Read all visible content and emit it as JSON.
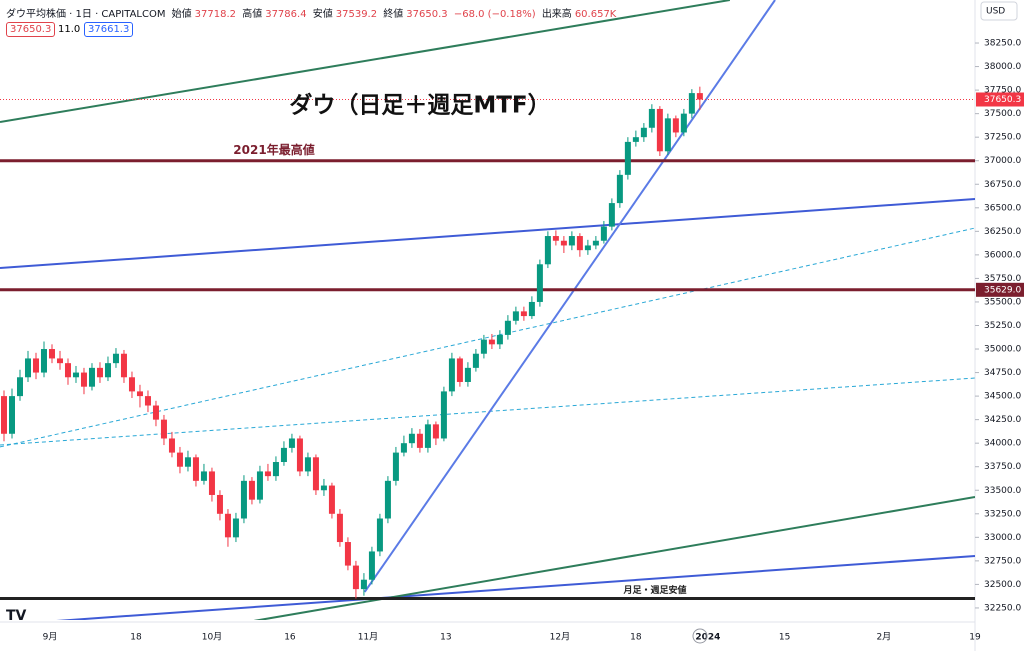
{
  "header": {
    "symbol": "ダウ平均株価 · 1日 · CAPITALCOM",
    "open_label": "始値",
    "open": "37718.2",
    "high_label": "高値",
    "high": "37786.4",
    "low_label": "安値",
    "low": "37539.2",
    "close_label": "終値",
    "close": "37650.3",
    "change": "−68.0 (−0.18%)",
    "volume_label": "出来高",
    "volume": "60.657K",
    "sell": "37650.3",
    "spread": "11.0",
    "buy": "37661.3",
    "currency": "USD"
  },
  "chart_data": {
    "type": "candlestick",
    "title": "ダウ（日足＋週足MTF）",
    "up_color": "#089981",
    "down_color": "#f23645",
    "xlim": [
      -0.5,
      121.4
    ],
    "xticks": [
      {
        "value": 5.75,
        "label": "9月"
      },
      {
        "value": 16.5,
        "label": "18"
      },
      {
        "value": 26,
        "label": "10月"
      },
      {
        "value": 35.75,
        "label": "16"
      },
      {
        "value": 45.5,
        "label": "11月"
      },
      {
        "value": 55.25,
        "label": "13"
      },
      {
        "value": 69.5,
        "label": "12月"
      },
      {
        "value": 79,
        "label": "18"
      },
      {
        "value": 88,
        "label": "2024"
      },
      {
        "value": 97.6,
        "label": "15"
      },
      {
        "value": 110,
        "label": "2月"
      },
      {
        "value": 121.4,
        "label": "19"
      }
    ],
    "ylim": [
      32122,
      38707
    ],
    "yticks": [
      {
        "value": 32250,
        "label": "32250.0"
      },
      {
        "value": 32500,
        "label": "32500.0"
      },
      {
        "value": 32750,
        "label": "32750.0"
      },
      {
        "value": 33000,
        "label": "33000.0"
      },
      {
        "value": 33250,
        "label": "33250.0"
      },
      {
        "value": 33500,
        "label": "33500.0"
      },
      {
        "value": 33750,
        "label": "33750.0"
      },
      {
        "value": 34000,
        "label": "34000.0"
      },
      {
        "value": 34250,
        "label": "34250.0"
      },
      {
        "value": 34500,
        "label": "34500.0"
      },
      {
        "value": 34750,
        "label": "34750.0"
      },
      {
        "value": 35000,
        "label": "35000.0"
      },
      {
        "value": 35250,
        "label": "35250.0"
      },
      {
        "value": 35500,
        "label": "35500.0"
      },
      {
        "value": 35750,
        "label": "35750.0"
      },
      {
        "value": 36000,
        "label": "36000.0"
      },
      {
        "value": 36250,
        "label": "36250.0"
      },
      {
        "value": 36500,
        "label": "36500.0"
      },
      {
        "value": 36750,
        "label": "36750.0"
      },
      {
        "value": 37000,
        "label": "37000.0"
      },
      {
        "value": 37250,
        "label": "37250.0"
      },
      {
        "value": 37500,
        "label": "37500.0"
      },
      {
        "value": 37750,
        "label": "37750.0"
      },
      {
        "value": 38000,
        "label": "38000.0"
      },
      {
        "value": 38250,
        "label": "38250.0"
      }
    ],
    "open": [
      34500,
      34100,
      34500,
      34700,
      34900,
      34750,
      35000,
      34900,
      34850,
      34700,
      34750,
      34600,
      34800,
      34700,
      34850,
      34950,
      34700,
      34550,
      34500,
      34400,
      34250,
      34050,
      33900,
      33750,
      33850,
      33600,
      33700,
      33450,
      33250,
      33000,
      33200,
      33600,
      33400,
      33700,
      33650,
      33800,
      33950,
      34050,
      33700,
      33850,
      33500,
      33550,
      33250,
      32950,
      32700,
      32450,
      32550,
      32850,
      33200,
      33600,
      33900,
      34000,
      34100,
      33950,
      34200,
      34050,
      34550,
      34900,
      34650,
      34800,
      34950,
      35100,
      35050,
      35150,
      35300,
      35400,
      35350,
      35500,
      35900,
      36200,
      36150,
      36100,
      36200,
      36050,
      36100,
      36150,
      36300,
      36550,
      36850,
      37200,
      37250,
      37350,
      37550,
      37100,
      37450,
      37300,
      37500,
      37718.2
    ],
    "high": [
      34560,
      34580,
      34780,
      34980,
      34960,
      35080,
      35050,
      34980,
      34900,
      34820,
      34800,
      34850,
      34860,
      34920,
      35010,
      34990,
      34760,
      34620,
      34560,
      34450,
      34300,
      34120,
      33960,
      33920,
      33880,
      33780,
      33740,
      33500,
      33300,
      33260,
      33660,
      33640,
      33760,
      33780,
      33860,
      34020,
      34100,
      34080,
      33900,
      33880,
      33620,
      33580,
      33300,
      33000,
      32750,
      32620,
      32900,
      33250,
      33650,
      33960,
      34080,
      34160,
      34150,
      34250,
      34230,
      34600,
      34960,
      34920,
      34860,
      35000,
      35150,
      35160,
      35200,
      35360,
      35450,
      35450,
      35560,
      35950,
      36250,
      36260,
      36200,
      36250,
      36230,
      36160,
      36200,
      36360,
      36600,
      36900,
      37250,
      37320,
      37400,
      37600,
      37580,
      37500,
      37480,
      37550,
      37760,
      37786.4
    ],
    "low": [
      34020,
      34050,
      34450,
      34650,
      34680,
      34700,
      34850,
      34780,
      34620,
      34640,
      34520,
      34560,
      34640,
      34660,
      34800,
      34640,
      34480,
      34380,
      34330,
      34180,
      33980,
      33850,
      33680,
      33700,
      33540,
      33560,
      33380,
      33180,
      32900,
      32950,
      33150,
      33350,
      33360,
      33600,
      33600,
      33760,
      33900,
      33650,
      33650,
      33450,
      33440,
      33200,
      32900,
      32650,
      32350,
      32380,
      32500,
      32800,
      33150,
      33550,
      33860,
      33950,
      33900,
      33900,
      33980,
      34020,
      34500,
      34600,
      34600,
      34760,
      34900,
      35000,
      35000,
      35100,
      35260,
      35300,
      35320,
      35450,
      35860,
      36100,
      36020,
      36050,
      35980,
      36000,
      36060,
      36120,
      36260,
      36500,
      36800,
      37150,
      37200,
      37300,
      37050,
      37060,
      37250,
      37260,
      37450,
      37539.2
    ],
    "close": [
      34100,
      34500,
      34700,
      34900,
      34750,
      35000,
      34900,
      34850,
      34700,
      34750,
      34600,
      34800,
      34700,
      34850,
      34950,
      34700,
      34550,
      34500,
      34400,
      34250,
      34050,
      33900,
      33750,
      33850,
      33600,
      33700,
      33450,
      33250,
      33000,
      33200,
      33600,
      33400,
      33700,
      33650,
      33800,
      33950,
      34050,
      33700,
      33850,
      33500,
      33550,
      33250,
      32950,
      32700,
      32450,
      32550,
      32850,
      33200,
      33600,
      33900,
      34000,
      34100,
      33950,
      34200,
      34050,
      34550,
      34900,
      34650,
      34800,
      34950,
      35100,
      35050,
      35150,
      35300,
      35400,
      35350,
      35500,
      35900,
      36200,
      36150,
      36100,
      36200,
      36050,
      36100,
      36150,
      36300,
      36550,
      36850,
      37200,
      37250,
      37350,
      37550,
      37100,
      37450,
      37300,
      37500,
      37718.2,
      37650.3
    ],
    "hlines": [
      {
        "value": 37000,
        "label": "2021年最高値",
        "color": "#7b1e2e"
      },
      {
        "value": {
          "value": 35629,
          "label": "35629.0"
        },
        "color": "#7b1e2e"
      },
      {
        "value": 32350,
        "label": "月足・週足安値",
        "color": "#222222"
      }
    ],
    "trendlines": [
      {
        "color": "#2e7d5b",
        "dashed": false,
        "x": [
          -0.5,
          90.75
        ],
        "y": [
          37411,
          38707
        ]
      },
      {
        "color": "#3f5bd6",
        "dashed": false,
        "x": [
          -0.5,
          121.4
        ],
        "y": [
          35860,
          36593
        ]
      },
      {
        "color": "#29a8d6",
        "dashed": true,
        "x": [
          -0.5,
          121.4
        ],
        "y": [
          33960,
          36285
        ]
      },
      {
        "color": "#29a8d6",
        "dashed": true,
        "x": [
          -0.5,
          121.4
        ],
        "y": [
          33981,
          34692
        ]
      },
      {
        "color": "#5b7be6",
        "dashed": false,
        "x": [
          45.1,
          96.4
        ],
        "y": [
          32420,
          38707
        ]
      },
      {
        "color": "#3f5bd6",
        "dashed": false,
        "x": [
          -0.5,
          121.4
        ],
        "y": [
          32069,
          32802
        ]
      },
      {
        "color": "#2e7d5b",
        "dashed": false,
        "x": [
          23.25,
          121.4
        ],
        "y": [
          31995,
          33428
        ]
      }
    ]
  }
}
